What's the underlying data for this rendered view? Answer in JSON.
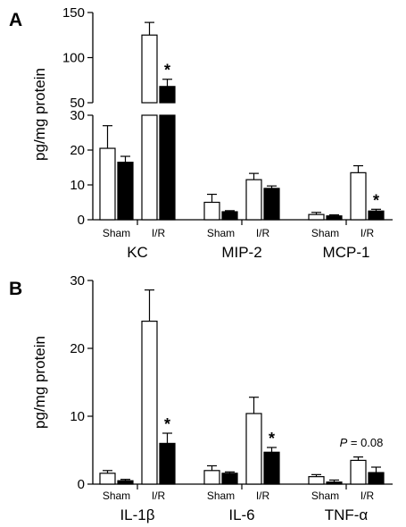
{
  "chart_data": [
    {
      "panel": "A",
      "type": "bar",
      "ylabel": "pg/mg protein",
      "axis_break": true,
      "lower_segment": {
        "ylim": [
          0,
          30
        ],
        "ticks": [
          "0",
          "10",
          "20",
          "30"
        ]
      },
      "upper_segment": {
        "ylim": [
          50,
          150
        ],
        "ticks": [
          "50",
          "100",
          "150"
        ]
      },
      "categories": [
        "KC",
        "MIP-2",
        "MCP-1"
      ],
      "group_labels": [
        "Sham",
        "I/R"
      ],
      "series": [
        {
          "group": "Sham",
          "genotype_fill": "open",
          "values": [
            20.5,
            5.0,
            1.5
          ],
          "errors": [
            6.5,
            2.3,
            0.6
          ]
        },
        {
          "group": "Sham",
          "genotype_fill": "solid",
          "values": [
            16.5,
            2.3,
            1.1
          ],
          "errors": [
            1.7,
            0.3,
            0.3
          ]
        },
        {
          "group": "I/R",
          "genotype_fill": "open",
          "values": [
            125,
            11.5,
            13.5
          ],
          "errors": [
            14,
            1.8,
            2.0
          ]
        },
        {
          "group": "I/R",
          "genotype_fill": "solid",
          "values": [
            68,
            9.0,
            2.5
          ],
          "errors": [
            8,
            0.7,
            0.5
          ]
        }
      ],
      "significance": [
        {
          "category": "KC",
          "bar": "I/R solid",
          "label": "*"
        },
        {
          "category": "MCP-1",
          "bar": "I/R solid",
          "label": "*"
        }
      ]
    },
    {
      "panel": "B",
      "type": "bar",
      "ylabel": "pg/mg protein",
      "ylim": [
        0,
        30
      ],
      "ticks": [
        "0",
        "10",
        "20",
        "30"
      ],
      "categories": [
        "IL-1β",
        "IL-6",
        "TNF-α"
      ],
      "group_labels": [
        "Sham",
        "I/R"
      ],
      "series": [
        {
          "group": "Sham",
          "genotype_fill": "open",
          "values": [
            1.6,
            2.0,
            1.1
          ],
          "errors": [
            0.4,
            0.7,
            0.3
          ]
        },
        {
          "group": "Sham",
          "genotype_fill": "solid",
          "values": [
            0.5,
            1.6,
            0.3
          ],
          "errors": [
            0.2,
            0.2,
            0.3
          ]
        },
        {
          "group": "I/R",
          "genotype_fill": "open",
          "values": [
            24.0,
            10.4,
            3.5
          ],
          "errors": [
            4.6,
            2.4,
            0.5
          ]
        },
        {
          "group": "I/R",
          "genotype_fill": "solid",
          "values": [
            6.0,
            4.7,
            1.7
          ],
          "errors": [
            1.5,
            0.7,
            0.8
          ]
        }
      ],
      "significance": [
        {
          "category": "IL-1β",
          "bar": "I/R solid",
          "label": "*"
        },
        {
          "category": "IL-6",
          "bar": "I/R solid",
          "label": "*"
        }
      ],
      "annotation": {
        "category": "TNF-α",
        "p_letter": "P",
        "p_rest": " = 0.08"
      }
    }
  ]
}
